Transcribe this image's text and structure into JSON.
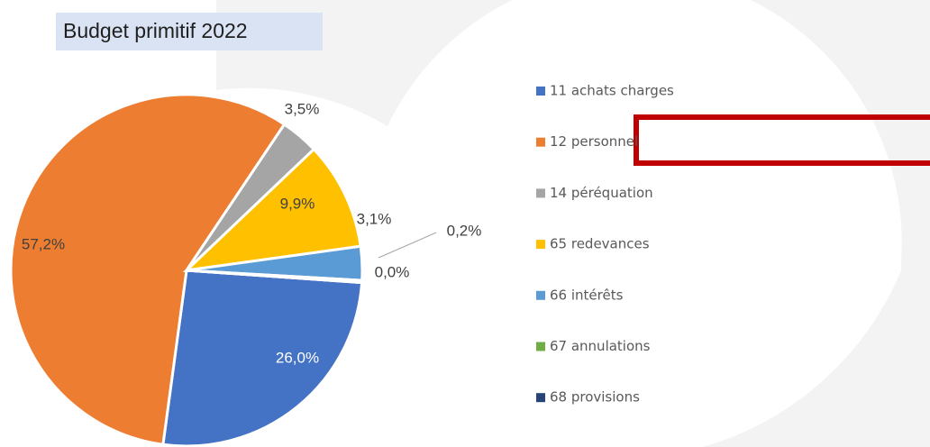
{
  "chart_data": {
    "type": "pie",
    "title": "Budget primitif 2022",
    "categories": [
      "11 achats charges",
      "12 personnel",
      "14 péréquation",
      "65 redevances",
      "66 intérêts",
      "67 annulations",
      "68 provisions"
    ],
    "values": [
      26.0,
      57.2,
      3.5,
      9.9,
      3.1,
      0.2,
      0.0
    ],
    "value_labels": [
      "26,0%",
      "57,2%",
      "3,5%",
      "9,9%",
      "3,1%",
      "0,2%",
      "0,0%"
    ],
    "colors": [
      "#4472c4",
      "#ed7d31",
      "#a5a5a5",
      "#ffc000",
      "#5b9bd5",
      "#70ad47",
      "#264478"
    ],
    "legend": "right"
  }
}
